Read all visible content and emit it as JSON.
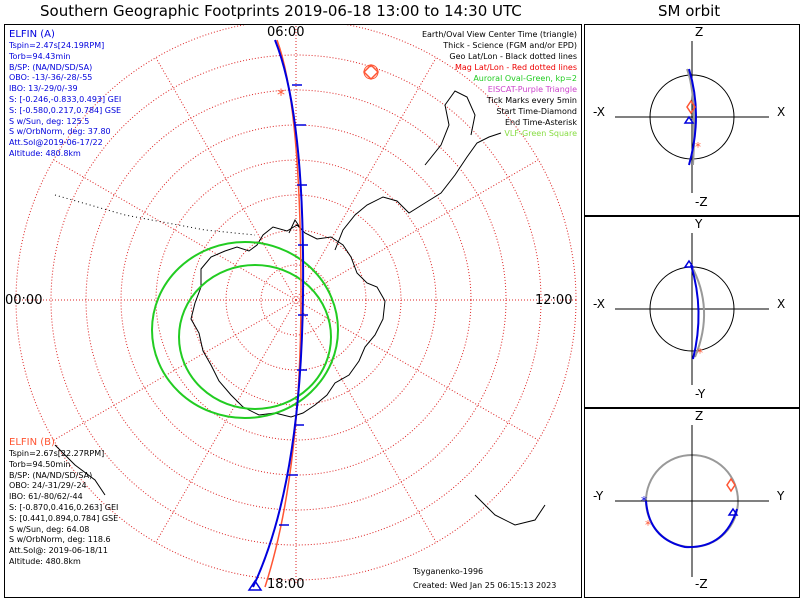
{
  "title": "Southern Geographic Footprints 2019-06-18 13:00 to 14:30 UTC",
  "orbit_title": "SM orbit",
  "colors": {
    "elfin_a": "#0000dd",
    "elfin_b": "#ff5533",
    "oval": "#22cc22",
    "grid": "#dd2222",
    "eiscat": "#cc44cc",
    "vlf": "#88dd44",
    "sun": "#999999"
  },
  "time_labels": {
    "top": "06:00",
    "bottom": "18:00",
    "left": "00:00",
    "right": "12:00"
  },
  "elfin_a": {
    "name": "ELFIN (A)",
    "lines": [
      "Tspin=2.47s[24.19RPM]",
      "Torb=94.43min",
      "B/SP: (NA/ND/SD/SA)",
      "OBO: -13/-36/-28/-55",
      "IBO: 13/-29/0/-39",
      "S: [-0.246,-0.833,0.493] GEI",
      "S: [-0.580,0.217,0.784] GSE",
      "S w/Sun, deg: 125.5",
      "S w/OrbNorm, deg: 37.80",
      "Att.Sol@2019-06-17/22",
      "Altitude: 480.8km"
    ]
  },
  "elfin_b": {
    "name": "ELFIN (B)",
    "lines": [
      "Tspin=2.67s[22.27RPM]",
      "Torb=94.50min",
      "B/SP: (NA/ND/SD/SA)",
      "OBO: 24/-31/29/-24",
      "IBO: 61/-80/62/-44",
      "S: [-0.870,0.416,0.263] GEI",
      "S: [0.441,0.894,0.784] GSE",
      "S w/Sun, deg: 64.08",
      "S w/OrbNorm, deg: 118.6",
      "Att.Sol@: 2019-06-18/11",
      "Altitude: 480.8km"
    ]
  },
  "legend": [
    {
      "text": "Earth/Oval View Center Time (triangle)",
      "color": "#000000"
    },
    {
      "text": "Thick - Science (FGM and/or EPD)",
      "color": "#000000"
    },
    {
      "text": "Geo Lat/Lon - Black dotted lines",
      "color": "#000000"
    },
    {
      "text": "Mag Lat/Lon - Red dotted lines",
      "color": "#ee0000"
    },
    {
      "text": "Auroral Oval-Green, kp=2",
      "color": "#22cc22"
    },
    {
      "text": "EISCAT-Purple Triangle",
      "color": "#cc44cc"
    },
    {
      "text": "Tick Marks every 5min",
      "color": "#000000"
    },
    {
      "text": "Start Time-Diamond",
      "color": "#000000"
    },
    {
      "text": "End Time-Asterisk",
      "color": "#000000"
    },
    {
      "text": "VLF-Green Square",
      "color": "#88dd44"
    }
  ],
  "credits": {
    "model": "Tsyganenko-1996",
    "created": "Created: Wed Jan 25 06:15:13 2023"
  },
  "sm_panels": [
    {
      "top": "Z",
      "bottom": "-Z",
      "left": "-X",
      "right": "X"
    },
    {
      "top": "Y",
      "bottom": "-Y",
      "left": "-X",
      "right": "X"
    },
    {
      "top": "Z",
      "bottom": "-Z",
      "left": "-Y",
      "right": "Y"
    }
  ]
}
